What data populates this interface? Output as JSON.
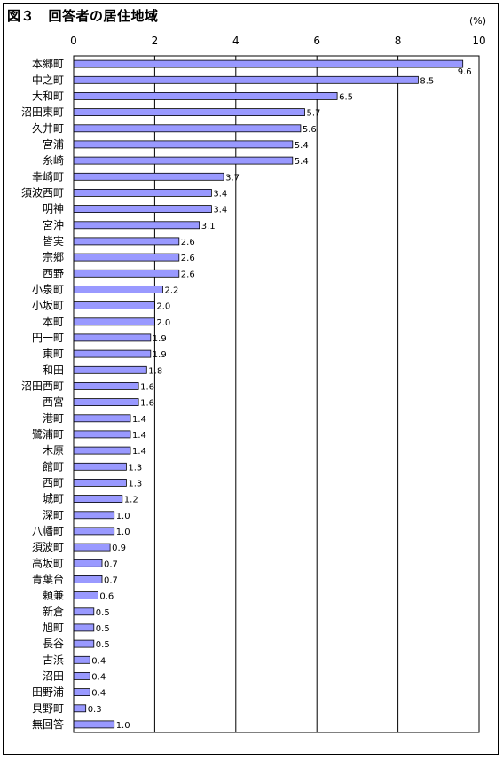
{
  "title": "図３　回答者の居住地域",
  "chart_data": {
    "type": "bar",
    "orientation": "horizontal",
    "unit": "(%)",
    "xlim": [
      0,
      10
    ],
    "ticks": [
      "0",
      "2",
      "4",
      "6",
      "8",
      "10"
    ],
    "grid": true,
    "bar_color": "#9999ff",
    "categories": [
      "本郷町",
      "中之町",
      "大和町",
      "沼田東町",
      "久井町",
      "宮浦",
      "糸崎",
      "幸崎町",
      "須波西町",
      "明神",
      "宮沖",
      "皆実",
      "宗郷",
      "西野",
      "小泉町",
      "小坂町",
      "本町",
      "円一町",
      "東町",
      "和田",
      "沼田西町",
      "西宮",
      "港町",
      "鷺浦町",
      "木原",
      "館町",
      "西町",
      "城町",
      "深町",
      "八幡町",
      "須波町",
      "高坂町",
      "青葉台",
      "頼兼",
      "新倉",
      "旭町",
      "長谷",
      "古浜",
      "沼田",
      "田野浦",
      "貝野町",
      "無回答"
    ],
    "values": [
      9.6,
      8.5,
      6.5,
      5.7,
      5.6,
      5.4,
      5.4,
      3.7,
      3.4,
      3.4,
      3.1,
      2.6,
      2.6,
      2.6,
      2.2,
      2.0,
      2.0,
      1.9,
      1.9,
      1.8,
      1.6,
      1.6,
      1.4,
      1.4,
      1.4,
      1.3,
      1.3,
      1.2,
      1.0,
      1.0,
      0.9,
      0.7,
      0.7,
      0.6,
      0.5,
      0.5,
      0.5,
      0.4,
      0.4,
      0.4,
      0.3,
      1.0
    ],
    "value_labels": [
      "9.6",
      "8.5",
      "6.5",
      "5.7",
      "5.6",
      "5.4",
      "5.4",
      "3.7",
      "3.4",
      "3.4",
      "3.1",
      "2.6",
      "2.6",
      "2.6",
      "2.2",
      "2.0",
      "2.0",
      "1.9",
      "1.9",
      "1.8",
      "1.6",
      "1.6",
      "1.4",
      "1.4",
      "1.4",
      "1.3",
      "1.3",
      "1.2",
      "1.0",
      "1.0",
      "0.9",
      "0.7",
      "0.7",
      "0.6",
      "0.5",
      "0.5",
      "0.5",
      "0.4",
      "0.4",
      "0.4",
      "0.3",
      "1.0"
    ]
  }
}
